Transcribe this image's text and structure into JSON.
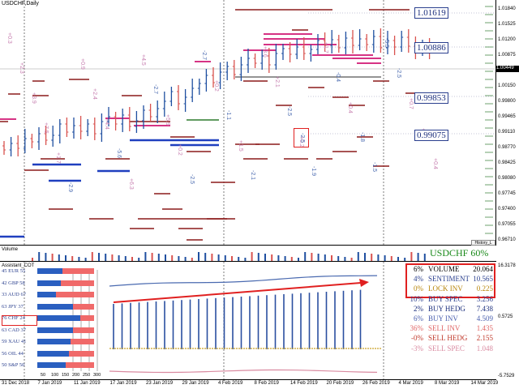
{
  "window": {
    "title": "USDCHF,Daily"
  },
  "price_scale": [
    "1.01840",
    "1.01525",
    "1.01200",
    "1.00875",
    "1.00449",
    "1.00150",
    "0.99800",
    "0.99465",
    "0.99110",
    "0.98770",
    "0.98425",
    "0.98080",
    "0.97745",
    "0.97400",
    "0.97055",
    "0.96710"
  ],
  "current_price": "1.00449",
  "levels": [
    {
      "label": "1.01619",
      "color": "#1c2f7d"
    },
    {
      "label": "1.00886",
      "color": "#1c2f7d"
    },
    {
      "label": "0.99853",
      "color": "#1c2f7d"
    },
    {
      "label": "0.99075",
      "color": "#1c2f7d"
    }
  ],
  "highlight_value": "-2.5",
  "annotations": [
    "+0.3",
    "+2.3",
    "+3.9",
    "+7.5",
    "+1.7",
    "-2.9",
    "+0.9",
    "+2.4",
    "+4.4",
    "-5.6",
    "+6.3",
    "+4.5",
    "-2.7",
    "+5.9",
    "+0.2",
    "-2.5",
    "-2.7",
    "+0.2",
    "-1.1",
    "+1.5",
    "-2.1",
    "+3.6",
    "+2.1",
    "-2.5",
    "+0.2",
    "-1.9",
    "+1.7",
    "-0.4",
    "+0.4",
    "-1.8",
    "-1.5",
    "-5.5",
    "-2.5",
    "+0.7",
    "+1.8",
    "+0.4"
  ],
  "history_button": "History_L",
  "volume_strip": {
    "label": "Volume",
    "pair_label": "USDCHF 60%",
    "pair_color": "#1a8a1a"
  },
  "indicator": {
    "title": "Assistant_COT",
    "scale": [
      "16.3178",
      "0.5725",
      "-5.7529"
    ],
    "cot_rows": [
      {
        "label": "45 EUR 55",
        "blue": 45,
        "red": 55
      },
      {
        "label": "42 GBP 58",
        "blue": 42,
        "red": 58
      },
      {
        "label": "33 AUD 67",
        "blue": 33,
        "red": 67
      },
      {
        "label": "63 JPY 37",
        "blue": 63,
        "red": 37
      },
      {
        "label": "76 CHF 24",
        "blue": 76,
        "red": 24
      },
      {
        "label": "63 CAD 37",
        "blue": 63,
        "red": 37
      },
      {
        "label": "59 XAU 41",
        "blue": 59,
        "red": 41
      },
      {
        "label": "56 OIL 44",
        "blue": 56,
        "red": 44
      },
      {
        "label": "50 S&P 50",
        "blue": 50,
        "red": 50
      }
    ],
    "bar_axis": [
      "50",
      "100",
      "150",
      "200",
      "250",
      "300"
    ],
    "stats": [
      {
        "pct": "6%",
        "name": "VOLUME",
        "value": "20.064",
        "color": "#000000"
      },
      {
        "pct": "4%",
        "name": "SENTIMENT",
        "value": "10.565",
        "color": "#2a3f8e"
      },
      {
        "pct": "0%",
        "name": "LOCK INV",
        "value": "0.225",
        "color": "#b8860b"
      },
      {
        "pct": "10%",
        "name": "BUY SPEC",
        "value": "3.256",
        "color": "#2a3f8e"
      },
      {
        "pct": "2%",
        "name": "BUY HEDG",
        "value": "7.438",
        "color": "#1c2f7d"
      },
      {
        "pct": "6%",
        "name": "BUY INV",
        "value": "4.509",
        "color": "#4a5fae"
      },
      {
        "pct": "36%",
        "name": "SELL INV",
        "value": "1.435",
        "color": "#e06666"
      },
      {
        "pct": "-0%",
        "name": "SELL HEDG",
        "value": "2.155",
        "color": "#c0392b"
      },
      {
        "pct": "-3%",
        "name": "SELL SPEC",
        "value": "1.048",
        "color": "#d98aa0"
      }
    ]
  },
  "dates": [
    "31 Dec 2018",
    "7 Jan 2019",
    "11 Jan 2019",
    "17 Jan 2019",
    "23 Jan 2019",
    "29 Jan 2019",
    "4 Feb 2019",
    "8 Feb 2019",
    "14 Feb 2019",
    "20 Feb 2019",
    "26 Feb 2019",
    "4 Mar 2019",
    "8 Mar 2019",
    "14 Mar 2019"
  ],
  "colors": {
    "bull": "#1f4fa0",
    "bear": "#d9534f",
    "resistance": "#8b1a1a",
    "magenta": "#d63384",
    "support_blue": "#1f3fbf",
    "green_line": "#2d7a2d"
  }
}
